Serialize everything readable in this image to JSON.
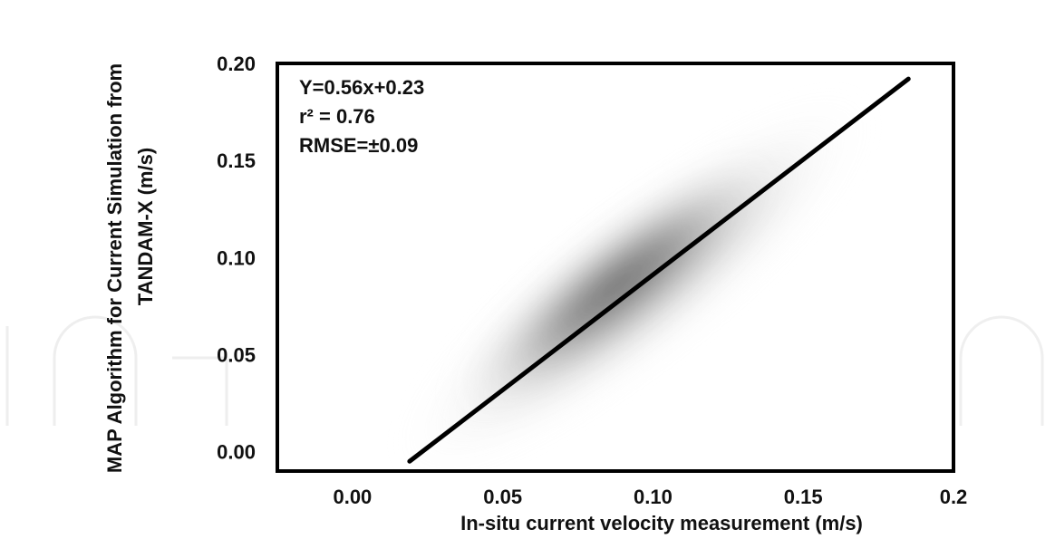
{
  "chart_data": {
    "type": "line",
    "title": "",
    "xlabel": "In-situ current velocity  measurement  (m/s)",
    "ylabel_line1": "MAP Algorithm  for Current Simulation  from",
    "ylabel_line2": "TANDAM-X   (m/s)",
    "xlim": [
      -0.025,
      0.2
    ],
    "ylim": [
      -0.01,
      0.2
    ],
    "x_ticks": [
      0.0,
      0.05,
      0.1,
      0.15,
      0.2
    ],
    "x_tick_labels": [
      "0.00",
      "0.05",
      "0.10",
      "0.15",
      "0.2"
    ],
    "y_ticks": [
      0.0,
      0.05,
      0.1,
      0.15,
      0.2
    ],
    "y_tick_labels": [
      "0.00",
      "0.05",
      "0.10",
      "0.15",
      "0.20"
    ],
    "series": [
      {
        "x": [
          0.019,
          0.185
        ],
        "y": [
          -0.005,
          0.192
        ]
      }
    ],
    "annotations": {
      "equation": "Y=0.56x+0.23",
      "r2": "r² = 0.76",
      "rmse": "RMSE=±0.09"
    },
    "density_cloud": true,
    "grid": false
  }
}
